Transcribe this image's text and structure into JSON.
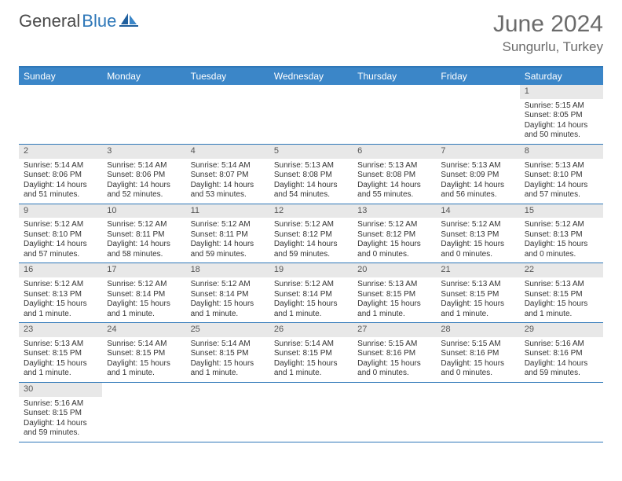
{
  "logo": {
    "text_dark": "General",
    "text_blue": "Blue"
  },
  "title": "June 2024",
  "location": "Sungurlu, Turkey",
  "colors": {
    "header_bg": "#3b86c8",
    "border": "#2e77b8",
    "daynum_bg": "#e8e8e8",
    "text": "#333333",
    "title_text": "#6b6b6b"
  },
  "weekdays": [
    "Sunday",
    "Monday",
    "Tuesday",
    "Wednesday",
    "Thursday",
    "Friday",
    "Saturday"
  ],
  "weeks": [
    [
      null,
      null,
      null,
      null,
      null,
      null,
      {
        "n": "1",
        "sr": "5:15 AM",
        "ss": "8:05 PM",
        "dl": "14 hours and 50 minutes."
      }
    ],
    [
      {
        "n": "2",
        "sr": "5:14 AM",
        "ss": "8:06 PM",
        "dl": "14 hours and 51 minutes."
      },
      {
        "n": "3",
        "sr": "5:14 AM",
        "ss": "8:06 PM",
        "dl": "14 hours and 52 minutes."
      },
      {
        "n": "4",
        "sr": "5:14 AM",
        "ss": "8:07 PM",
        "dl": "14 hours and 53 minutes."
      },
      {
        "n": "5",
        "sr": "5:13 AM",
        "ss": "8:08 PM",
        "dl": "14 hours and 54 minutes."
      },
      {
        "n": "6",
        "sr": "5:13 AM",
        "ss": "8:08 PM",
        "dl": "14 hours and 55 minutes."
      },
      {
        "n": "7",
        "sr": "5:13 AM",
        "ss": "8:09 PM",
        "dl": "14 hours and 56 minutes."
      },
      {
        "n": "8",
        "sr": "5:13 AM",
        "ss": "8:10 PM",
        "dl": "14 hours and 57 minutes."
      }
    ],
    [
      {
        "n": "9",
        "sr": "5:12 AM",
        "ss": "8:10 PM",
        "dl": "14 hours and 57 minutes."
      },
      {
        "n": "10",
        "sr": "5:12 AM",
        "ss": "8:11 PM",
        "dl": "14 hours and 58 minutes."
      },
      {
        "n": "11",
        "sr": "5:12 AM",
        "ss": "8:11 PM",
        "dl": "14 hours and 59 minutes."
      },
      {
        "n": "12",
        "sr": "5:12 AM",
        "ss": "8:12 PM",
        "dl": "14 hours and 59 minutes."
      },
      {
        "n": "13",
        "sr": "5:12 AM",
        "ss": "8:12 PM",
        "dl": "15 hours and 0 minutes."
      },
      {
        "n": "14",
        "sr": "5:12 AM",
        "ss": "8:13 PM",
        "dl": "15 hours and 0 minutes."
      },
      {
        "n": "15",
        "sr": "5:12 AM",
        "ss": "8:13 PM",
        "dl": "15 hours and 0 minutes."
      }
    ],
    [
      {
        "n": "16",
        "sr": "5:12 AM",
        "ss": "8:13 PM",
        "dl": "15 hours and 1 minute."
      },
      {
        "n": "17",
        "sr": "5:12 AM",
        "ss": "8:14 PM",
        "dl": "15 hours and 1 minute."
      },
      {
        "n": "18",
        "sr": "5:12 AM",
        "ss": "8:14 PM",
        "dl": "15 hours and 1 minute."
      },
      {
        "n": "19",
        "sr": "5:12 AM",
        "ss": "8:14 PM",
        "dl": "15 hours and 1 minute."
      },
      {
        "n": "20",
        "sr": "5:13 AM",
        "ss": "8:15 PM",
        "dl": "15 hours and 1 minute."
      },
      {
        "n": "21",
        "sr": "5:13 AM",
        "ss": "8:15 PM",
        "dl": "15 hours and 1 minute."
      },
      {
        "n": "22",
        "sr": "5:13 AM",
        "ss": "8:15 PM",
        "dl": "15 hours and 1 minute."
      }
    ],
    [
      {
        "n": "23",
        "sr": "5:13 AM",
        "ss": "8:15 PM",
        "dl": "15 hours and 1 minute."
      },
      {
        "n": "24",
        "sr": "5:14 AM",
        "ss": "8:15 PM",
        "dl": "15 hours and 1 minute."
      },
      {
        "n": "25",
        "sr": "5:14 AM",
        "ss": "8:15 PM",
        "dl": "15 hours and 1 minute."
      },
      {
        "n": "26",
        "sr": "5:14 AM",
        "ss": "8:15 PM",
        "dl": "15 hours and 1 minute."
      },
      {
        "n": "27",
        "sr": "5:15 AM",
        "ss": "8:16 PM",
        "dl": "15 hours and 0 minutes."
      },
      {
        "n": "28",
        "sr": "5:15 AM",
        "ss": "8:16 PM",
        "dl": "15 hours and 0 minutes."
      },
      {
        "n": "29",
        "sr": "5:16 AM",
        "ss": "8:16 PM",
        "dl": "14 hours and 59 minutes."
      }
    ],
    [
      {
        "n": "30",
        "sr": "5:16 AM",
        "ss": "8:15 PM",
        "dl": "14 hours and 59 minutes."
      },
      null,
      null,
      null,
      null,
      null,
      null
    ]
  ],
  "labels": {
    "sunrise": "Sunrise:",
    "sunset": "Sunset:",
    "daylight": "Daylight:"
  }
}
